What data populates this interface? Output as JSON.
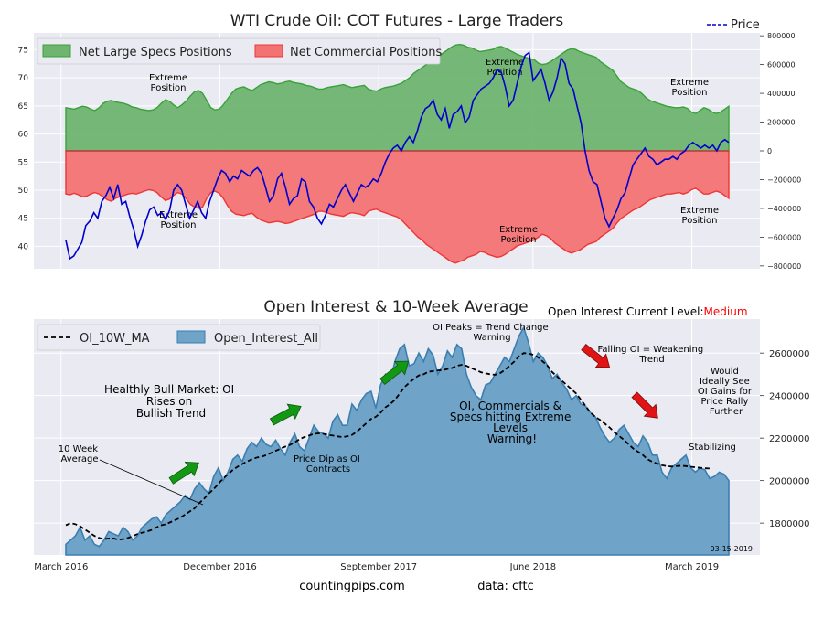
{
  "colors": {
    "plot_bg": "#eaeaf2",
    "grid": "#ffffff",
    "specs_fill": "#6fb46f",
    "specs_line": "#3aa23a",
    "comm_fill": "#f37373",
    "comm_line": "#ef3535",
    "price_line": "#0000cd",
    "oi_fill": "#6fa3c8",
    "oi_line": "#3b7fb0",
    "ma_line": "#000000",
    "arrow_green": "#139813",
    "arrow_red": "#e01414",
    "medium": "#ff0000",
    "text": "#222222"
  },
  "chart_data": [
    {
      "type": "area",
      "title": "WTI Crude Oil: COT Futures - Large Traders",
      "price_legend": "Price",
      "legend": [
        "Net Large Specs Positions",
        "Net Commercial Positions"
      ],
      "left_ticks": [
        40,
        45,
        50,
        55,
        60,
        65,
        70,
        75
      ],
      "left_ylim": [
        36,
        78
      ],
      "right_ticks": [
        "800000",
        "600000",
        "400000",
        "200000",
        "0",
        "−200000",
        "−400000",
        "−600000",
        "−800000"
      ],
      "right_tick_values": [
        800000,
        600000,
        400000,
        200000,
        0,
        -200000,
        -400000,
        -600000,
        -800000
      ],
      "right_ylim": [
        -820000,
        820000
      ],
      "x_range": [
        0,
        160
      ],
      "specs": [
        300000,
        295000,
        290000,
        300000,
        310000,
        305000,
        290000,
        280000,
        300000,
        330000,
        345000,
        350000,
        340000,
        335000,
        330000,
        320000,
        305000,
        300000,
        290000,
        285000,
        280000,
        285000,
        300000,
        330000,
        355000,
        345000,
        320000,
        300000,
        320000,
        345000,
        380000,
        410000,
        420000,
        400000,
        350000,
        300000,
        285000,
        290000,
        320000,
        360000,
        400000,
        430000,
        440000,
        445000,
        430000,
        420000,
        440000,
        460000,
        470000,
        480000,
        475000,
        465000,
        470000,
        480000,
        485000,
        475000,
        470000,
        465000,
        455000,
        450000,
        440000,
        430000,
        430000,
        440000,
        445000,
        450000,
        455000,
        460000,
        450000,
        440000,
        445000,
        450000,
        455000,
        430000,
        420000,
        415000,
        430000,
        440000,
        445000,
        450000,
        460000,
        470000,
        490000,
        510000,
        540000,
        560000,
        580000,
        600000,
        620000,
        630000,
        650000,
        680000,
        700000,
        720000,
        735000,
        740000,
        735000,
        720000,
        715000,
        700000,
        690000,
        695000,
        700000,
        705000,
        720000,
        725000,
        715000,
        700000,
        685000,
        670000,
        660000,
        650000,
        640000,
        635000,
        610000,
        600000,
        605000,
        620000,
        640000,
        660000,
        680000,
        700000,
        710000,
        705000,
        690000,
        680000,
        670000,
        660000,
        650000,
        620000,
        600000,
        580000,
        560000,
        520000,
        480000,
        460000,
        440000,
        430000,
        420000,
        400000,
        370000,
        350000,
        340000,
        330000,
        320000,
        310000,
        305000,
        300000,
        300000,
        305000,
        295000,
        270000,
        260000,
        280000,
        300000,
        290000,
        270000,
        260000,
        270000,
        290000,
        310000
      ],
      "comm": [
        -300000,
        -305000,
        -295000,
        -305000,
        -320000,
        -315000,
        -300000,
        -290000,
        -300000,
        -320000,
        -340000,
        -350000,
        -330000,
        -320000,
        -310000,
        -300000,
        -295000,
        -300000,
        -290000,
        -280000,
        -270000,
        -275000,
        -290000,
        -320000,
        -345000,
        -335000,
        -310000,
        -290000,
        -300000,
        -330000,
        -370000,
        -390000,
        -400000,
        -390000,
        -330000,
        -290000,
        -280000,
        -295000,
        -330000,
        -380000,
        -420000,
        -440000,
        -445000,
        -450000,
        -440000,
        -435000,
        -460000,
        -480000,
        -490000,
        -500000,
        -495000,
        -490000,
        -495000,
        -505000,
        -500000,
        -490000,
        -480000,
        -470000,
        -460000,
        -450000,
        -440000,
        -420000,
        -420000,
        -430000,
        -440000,
        -445000,
        -450000,
        -455000,
        -440000,
        -430000,
        -435000,
        -440000,
        -450000,
        -420000,
        -410000,
        -405000,
        -420000,
        -430000,
        -440000,
        -450000,
        -460000,
        -480000,
        -510000,
        -540000,
        -570000,
        -600000,
        -620000,
        -650000,
        -670000,
        -690000,
        -710000,
        -730000,
        -750000,
        -770000,
        -780000,
        -770000,
        -760000,
        -740000,
        -730000,
        -720000,
        -700000,
        -705000,
        -720000,
        -730000,
        -740000,
        -735000,
        -720000,
        -700000,
        -680000,
        -660000,
        -650000,
        -640000,
        -630000,
        -620000,
        -600000,
        -580000,
        -590000,
        -610000,
        -640000,
        -660000,
        -680000,
        -700000,
        -710000,
        -700000,
        -690000,
        -670000,
        -650000,
        -640000,
        -630000,
        -600000,
        -580000,
        -560000,
        -540000,
        -500000,
        -470000,
        -450000,
        -430000,
        -410000,
        -400000,
        -380000,
        -360000,
        -340000,
        -330000,
        -320000,
        -310000,
        -300000,
        -300000,
        -295000,
        -290000,
        -300000,
        -290000,
        -270000,
        -260000,
        -280000,
        -300000,
        -300000,
        -290000,
        -280000,
        -290000,
        -310000,
        -330000
      ],
      "price": [
        41.1,
        37.8,
        38.3,
        39.5,
        40.7,
        43.7,
        44.5,
        46.0,
        45.0,
        48.0,
        49.0,
        50.5,
        48.5,
        51.0,
        47.5,
        48.0,
        45.3,
        43.0,
        40.0,
        42.0,
        44.5,
        46.5,
        47.0,
        45.5,
        46.0,
        44.8,
        46.5,
        50.0,
        51.0,
        50.0,
        47.5,
        45.0,
        46.5,
        48.0,
        46.0,
        45.0,
        48.0,
        50.0,
        52.0,
        53.5,
        53.0,
        51.5,
        52.5,
        52.0,
        53.5,
        53.0,
        52.5,
        53.5,
        54.0,
        53.0,
        50.5,
        48.0,
        49.0,
        52.0,
        53.0,
        50.5,
        47.5,
        48.5,
        49.0,
        52.0,
        51.5,
        48.0,
        47.0,
        45.0,
        44.0,
        45.5,
        47.5,
        47.0,
        48.5,
        50.0,
        51.0,
        49.5,
        48.0,
        49.5,
        51.0,
        50.5,
        51.0,
        52.0,
        51.5,
        53.0,
        55.0,
        56.5,
        57.5,
        58.0,
        57.0,
        58.5,
        59.5,
        58.5,
        60.5,
        63.0,
        64.5,
        65.0,
        66.0,
        63.5,
        62.5,
        64.5,
        61.0,
        63.5,
        64.0,
        65.0,
        62.0,
        63.0,
        66.0,
        67.0,
        68.0,
        68.5,
        69.0,
        70.0,
        71.5,
        71.0,
        68.5,
        65.0,
        66.0,
        69.0,
        72.0,
        74.0,
        74.5,
        69.5,
        70.5,
        71.5,
        69.0,
        66.0,
        67.5,
        70.0,
        73.5,
        72.5,
        69.0,
        68.0,
        65.0,
        62.0,
        57.0,
        53.5,
        51.5,
        51.0,
        48.0,
        45.0,
        43.5,
        45.0,
        46.5,
        48.5,
        49.5,
        52.0,
        54.5,
        55.5,
        56.5,
        57.5,
        56.0,
        55.5,
        54.5,
        55.0,
        55.5,
        55.5,
        56.0,
        55.5,
        56.5,
        57.0,
        58.0,
        58.5,
        58.0,
        57.5,
        58.0,
        57.5,
        58.0,
        57.0,
        58.5,
        59.0,
        58.5
      ],
      "annotations": [
        {
          "text": "Extreme Position",
          "role": "specs-2016"
        },
        {
          "text": "Extreme Position",
          "role": "comm-2016"
        },
        {
          "text": "Extreme Position",
          "role": "specs-2018"
        },
        {
          "text": "Extreme Position",
          "role": "comm-2018"
        },
        {
          "text": "Extreme Position",
          "role": "specs-2019"
        },
        {
          "text": "Extreme Position",
          "role": "comm-2019"
        }
      ]
    },
    {
      "type": "area",
      "title": "Open Interest & 10-Week Average",
      "status_label": "Open Interest Current Level:",
      "status_value": "Medium",
      "legend": [
        "OI_10W_MA",
        "Open_Interest_All"
      ],
      "right_ticks": [
        "1800000",
        "2000000",
        "2200000",
        "2400000",
        "2600000"
      ],
      "right_tick_values": [
        1800000,
        2000000,
        2200000,
        2400000,
        2600000
      ],
      "ylim": [
        1650000,
        2760000
      ],
      "x_ticks": [
        "March 2016",
        "December 2016",
        "September 2017",
        "June 2018",
        "March 2019"
      ],
      "x_tick_positions": [
        6,
        41,
        76,
        110,
        145
      ],
      "x_range": [
        0,
        160
      ],
      "date_label": "03-15-2019",
      "oi": [
        1700000,
        1720000,
        1740000,
        1780000,
        1720000,
        1740000,
        1700000,
        1690000,
        1720000,
        1760000,
        1750000,
        1740000,
        1780000,
        1760000,
        1720000,
        1740000,
        1780000,
        1800000,
        1820000,
        1830000,
        1800000,
        1840000,
        1860000,
        1880000,
        1900000,
        1930000,
        1910000,
        1960000,
        1990000,
        1960000,
        1940000,
        2020000,
        2060000,
        2000000,
        2040000,
        2100000,
        2120000,
        2090000,
        2150000,
        2180000,
        2160000,
        2200000,
        2170000,
        2160000,
        2190000,
        2150000,
        2120000,
        2180000,
        2220000,
        2160000,
        2140000,
        2200000,
        2260000,
        2230000,
        2220000,
        2200000,
        2280000,
        2310000,
        2260000,
        2260000,
        2360000,
        2330000,
        2380000,
        2410000,
        2420000,
        2340000,
        2450000,
        2500000,
        2470000,
        2560000,
        2620000,
        2640000,
        2540000,
        2550000,
        2600000,
        2560000,
        2620000,
        2590000,
        2500000,
        2540000,
        2610000,
        2580000,
        2640000,
        2620000,
        2500000,
        2440000,
        2400000,
        2380000,
        2450000,
        2460000,
        2500000,
        2540000,
        2580000,
        2560000,
        2620000,
        2680000,
        2720000,
        2650000,
        2560000,
        2600000,
        2580000,
        2540000,
        2480000,
        2500000,
        2460000,
        2430000,
        2380000,
        2400000,
        2360000,
        2350000,
        2320000,
        2300000,
        2250000,
        2210000,
        2180000,
        2200000,
        2240000,
        2260000,
        2220000,
        2180000,
        2160000,
        2210000,
        2180000,
        2120000,
        2120000,
        2040000,
        2010000,
        2060000,
        2080000,
        2100000,
        2120000,
        2060000,
        2040000,
        2060000,
        2050000,
        2010000,
        2020000,
        2040000,
        2030000,
        2000000
      ],
      "ma": [
        1790000,
        1800000,
        1795000,
        1785000,
        1770000,
        1755000,
        1740000,
        1730000,
        1725000,
        1728000,
        1728000,
        1722000,
        1725000,
        1730000,
        1738000,
        1748000,
        1755000,
        1760000,
        1768000,
        1780000,
        1790000,
        1795000,
        1805000,
        1815000,
        1825000,
        1840000,
        1855000,
        1870000,
        1895000,
        1915000,
        1940000,
        1960000,
        1985000,
        2010000,
        2030000,
        2050000,
        2065000,
        2078000,
        2090000,
        2100000,
        2108000,
        2112000,
        2120000,
        2130000,
        2140000,
        2150000,
        2160000,
        2168000,
        2180000,
        2195000,
        2205000,
        2212000,
        2220000,
        2222000,
        2220000,
        2215000,
        2212000,
        2208000,
        2205000,
        2208000,
        2215000,
        2230000,
        2250000,
        2270000,
        2290000,
        2300000,
        2320000,
        2345000,
        2360000,
        2380000,
        2410000,
        2440000,
        2460000,
        2480000,
        2495000,
        2500000,
        2512000,
        2515000,
        2518000,
        2520000,
        2525000,
        2530000,
        2540000,
        2545000,
        2540000,
        2530000,
        2520000,
        2510000,
        2505000,
        2500000,
        2498000,
        2505000,
        2520000,
        2540000,
        2560000,
        2585000,
        2600000,
        2598000,
        2592000,
        2580000,
        2560000,
        2540000,
        2510000,
        2490000,
        2470000,
        2450000,
        2430000,
        2410000,
        2380000,
        2350000,
        2320000,
        2300000,
        2285000,
        2268000,
        2250000,
        2228000,
        2210000,
        2192000,
        2170000,
        2150000,
        2135000,
        2120000,
        2100000,
        2088000,
        2080000,
        2072000,
        2068000,
        2066000,
        2068000,
        2070000,
        2068000,
        2065000,
        2062000,
        2060000,
        2058000,
        2057000
      ]
    }
  ],
  "annotations_bottom": {
    "healthy": [
      "Healthly Bull Market: OI",
      "Rises on",
      "Bullish Trend"
    ],
    "ten_week": [
      "10 Week",
      "Average"
    ],
    "price_dip": [
      "Price Dip as OI",
      "Contracts"
    ],
    "oi_peaks": [
      "OI Peaks = Trend Change",
      "Warning"
    ],
    "oi_extreme": [
      "OI, Commercials &",
      "Specs hitting Extreme",
      "Levels",
      "Warning!"
    ],
    "falling": [
      "Falling OI = Weakening",
      "Trend"
    ],
    "would": [
      "Would",
      "Ideally See",
      "OI Gains for",
      "Price Rally",
      "Further"
    ],
    "stabilizing": [
      "Stabilizing"
    ]
  },
  "footer": {
    "site": "countingpips.com",
    "source": "data: cftc"
  }
}
